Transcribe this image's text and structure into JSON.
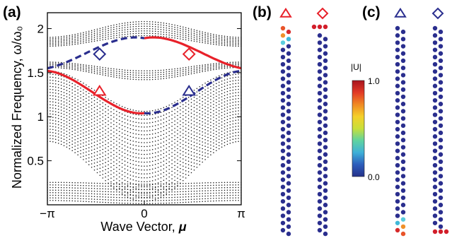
{
  "panel_labels": {
    "a": "(a)",
    "b": "(b)",
    "c": "(c)"
  },
  "chart_data": {
    "type": "scatter",
    "xlabel": "Wave Vector, μ",
    "ylabel": "Normalized Frequency, ω/ω₀",
    "xlim": [
      -3.1416,
      3.1416
    ],
    "ylim": [
      0,
      2.18
    ],
    "x_ticks": [
      {
        "value": -3.1416,
        "label": "−π"
      },
      {
        "value": 0,
        "label": "0"
      },
      {
        "value": 3.1416,
        "label": "π"
      }
    ],
    "y_ticks": [
      {
        "value": 0.5,
        "label": "0.5"
      },
      {
        "value": 1.0,
        "label": "1"
      },
      {
        "value": 1.5,
        "label": "1.5"
      },
      {
        "value": 2.0,
        "label": "2"
      }
    ],
    "bands": [
      {
        "name": "low",
        "omega_at_edge": 0.255,
        "omega_at_center": 0.235,
        "omega_bottom_edge": 0.05,
        "omega_bottom_center": 0.015,
        "rows": 8
      },
      {
        "name": "middle",
        "omega_at_edge": 1.52,
        "omega_at_center": 1.06,
        "omega_bottom_edge": 0.72,
        "omega_bottom_center": 0.04,
        "rows": 24
      },
      {
        "name": "upper",
        "omega_at_edge": 1.62,
        "omega_at_center": 1.52,
        "omega_bottom_edge": 1.56,
        "omega_bottom_center": 1.42,
        "rows": 5
      },
      {
        "name": "top",
        "omega_at_edge": 1.9,
        "omega_at_center": 2.08,
        "omega_bottom_edge": 1.8,
        "omega_bottom_center": 1.92,
        "rows": 7
      }
    ],
    "edge_states": [
      {
        "name": "red-lower",
        "color": "#e8212a",
        "style": "solid",
        "x": [
          -3.1416,
          -1.5708,
          0
        ],
        "y": [
          1.52,
          1.25,
          1.04
        ]
      },
      {
        "name": "red-upper",
        "color": "#e8212a",
        "style": "solid",
        "x": [
          0,
          1.5708,
          3.1416
        ],
        "y": [
          1.89,
          1.78,
          1.55
        ]
      },
      {
        "name": "blue-upper",
        "color": "#2a2e8e",
        "style": "dashed",
        "x": [
          -3.1416,
          -1.5708,
          0
        ],
        "y": [
          1.55,
          1.78,
          1.89
        ]
      },
      {
        "name": "blue-lower",
        "color": "#2a2e8e",
        "style": "dashed",
        "x": [
          0,
          1.5708,
          3.1416
        ],
        "y": [
          1.04,
          1.25,
          1.52
        ]
      }
    ],
    "markers": [
      {
        "shape": "triangle",
        "color": "#e8212a",
        "x": -1.45,
        "y": 1.29
      },
      {
        "shape": "diamond",
        "color": "#2a2e8e",
        "x": -1.45,
        "y": 1.71
      },
      {
        "shape": "diamond",
        "color": "#e8212a",
        "x": 1.45,
        "y": 1.71
      },
      {
        "shape": "triangle",
        "color": "#2a2e8e",
        "x": 1.45,
        "y": 1.29
      }
    ]
  },
  "mode_panels": [
    {
      "panel": "b",
      "marker": "triangle",
      "marker_color": "#e8212a",
      "localized": "top",
      "rows": 29,
      "hot_colors": [
        "#e8542a",
        "#d62a2a",
        "#f0902a",
        "#40b8d8",
        "#5acdde"
      ]
    },
    {
      "panel": "b",
      "marker": "diamond",
      "marker_color": "#e8212a",
      "localized": "top",
      "rows": 29,
      "hot_colors": [
        "#d21e2a",
        "#d21e2a",
        "#d21e2a"
      ]
    },
    {
      "panel": "c",
      "marker": "triangle",
      "marker_color": "#2a2e8e",
      "localized": "bottom",
      "rows": 29,
      "hot_colors": [
        "#5acdde",
        "#40b8d8",
        "#f0902a",
        "#d62a2a",
        "#e8542a"
      ]
    },
    {
      "panel": "c",
      "marker": "diamond",
      "marker_color": "#2a2e8e",
      "localized": "bottom",
      "rows": 29,
      "hot_colors": [
        "#d21e2a",
        "#d21e2a",
        "#d21e2a"
      ]
    }
  ],
  "colorbar": {
    "title": "|U|",
    "max_label": "1.0",
    "min_label": "0.0",
    "stops": [
      "#25318a",
      "#2d5dbb",
      "#3fb0d8",
      "#5fd3a0",
      "#c8df3a",
      "#f4d02a",
      "#f08a24",
      "#e23a26",
      "#a8141e"
    ]
  },
  "colors": {
    "dot": "#2a2e8e",
    "red": "#e8212a",
    "blue": "#2a2e8e"
  }
}
